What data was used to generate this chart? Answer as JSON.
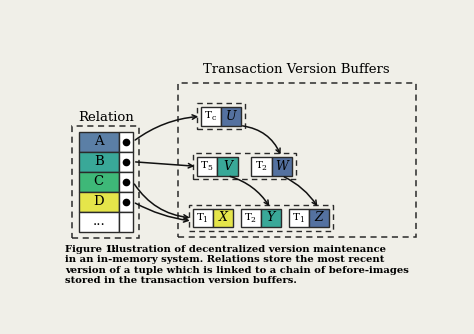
{
  "title_relation": "Relation",
  "title_tvb": "Transaction Version Buffers",
  "relation_rows": [
    "A",
    "B",
    "C",
    "D",
    "..."
  ],
  "relation_colors": [
    "#5b7fa6",
    "#39a898",
    "#3eb878",
    "#e5e54a",
    "#ffffff"
  ],
  "caption_bold": "Figure 1:",
  "caption_rest": " Illustration of decentralized version maintenance\nin an in-memory system. Relations store the most recent\nversion of a tuple which is linked to a chain of before-images\nstored in the transaction version buffers.",
  "bg_color": "#f0efe8",
  "border_color": "#2a2a2a",
  "arrow_color": "#111111",
  "chain1": [
    {
      "tsub": "c",
      "val": "U",
      "vcolor": "#5471a0"
    }
  ],
  "chain2": [
    {
      "tsub": "5",
      "val": "V",
      "vcolor": "#39a898"
    },
    {
      "tsub": "2",
      "val": "W",
      "vcolor": "#5471a0"
    }
  ],
  "chain3": [
    {
      "tsub": "1",
      "val": "X",
      "vcolor": "#e5e54a"
    },
    {
      "tsub": "2",
      "val": "Y",
      "vcolor": "#39a898"
    },
    {
      "tsub": "1",
      "val": "Z",
      "vcolor": "#5471a0"
    }
  ]
}
